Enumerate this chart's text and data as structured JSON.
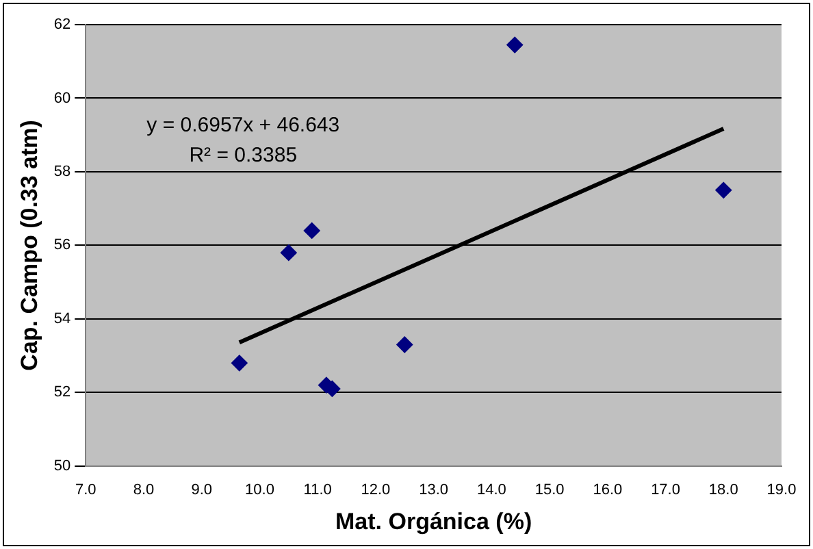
{
  "chart_data": {
    "type": "scatter",
    "xlabel": "Mat. Orgánica (%)",
    "ylabel": "Cap. Campo (0.33 atm)",
    "series": [
      {
        "type": "scatter",
        "color": "#000080",
        "marker": "diamond",
        "x": [
          9.65,
          10.5,
          10.9,
          11.15,
          11.25,
          12.5,
          14.4,
          18.0
        ],
        "values": [
          52.8,
          55.8,
          56.4,
          52.2,
          52.1,
          53.3,
          61.45,
          57.5
        ]
      },
      {
        "type": "line",
        "color": "#000000",
        "marker": "none",
        "x": [
          9.65,
          18.0
        ],
        "values": [
          53.36,
          59.17
        ]
      }
    ],
    "xlim": [
      7,
      19
    ],
    "xticks": [
      {
        "value": 7,
        "label": "7.0"
      },
      {
        "value": 8,
        "label": "8.0"
      },
      {
        "value": 9,
        "label": "9.0"
      },
      {
        "value": 10,
        "label": "10.0"
      },
      {
        "value": 11,
        "label": "11.0"
      },
      {
        "value": 12,
        "label": "12.0"
      },
      {
        "value": 13,
        "label": "13.0"
      },
      {
        "value": 14,
        "label": "14.0"
      },
      {
        "value": 15,
        "label": "15.0"
      },
      {
        "value": 16,
        "label": "16.0"
      },
      {
        "value": 17,
        "label": "17.0"
      },
      {
        "value": 18,
        "label": "18.0"
      },
      {
        "value": 19,
        "label": "19.0"
      }
    ],
    "ylim": [
      50,
      62
    ],
    "yticks": [
      50,
      52,
      54,
      56,
      58,
      60,
      62
    ],
    "grid": "y",
    "legend": false,
    "annotations": [
      "y = 0.6957x + 46.643",
      "R² = 0.3385"
    ]
  }
}
